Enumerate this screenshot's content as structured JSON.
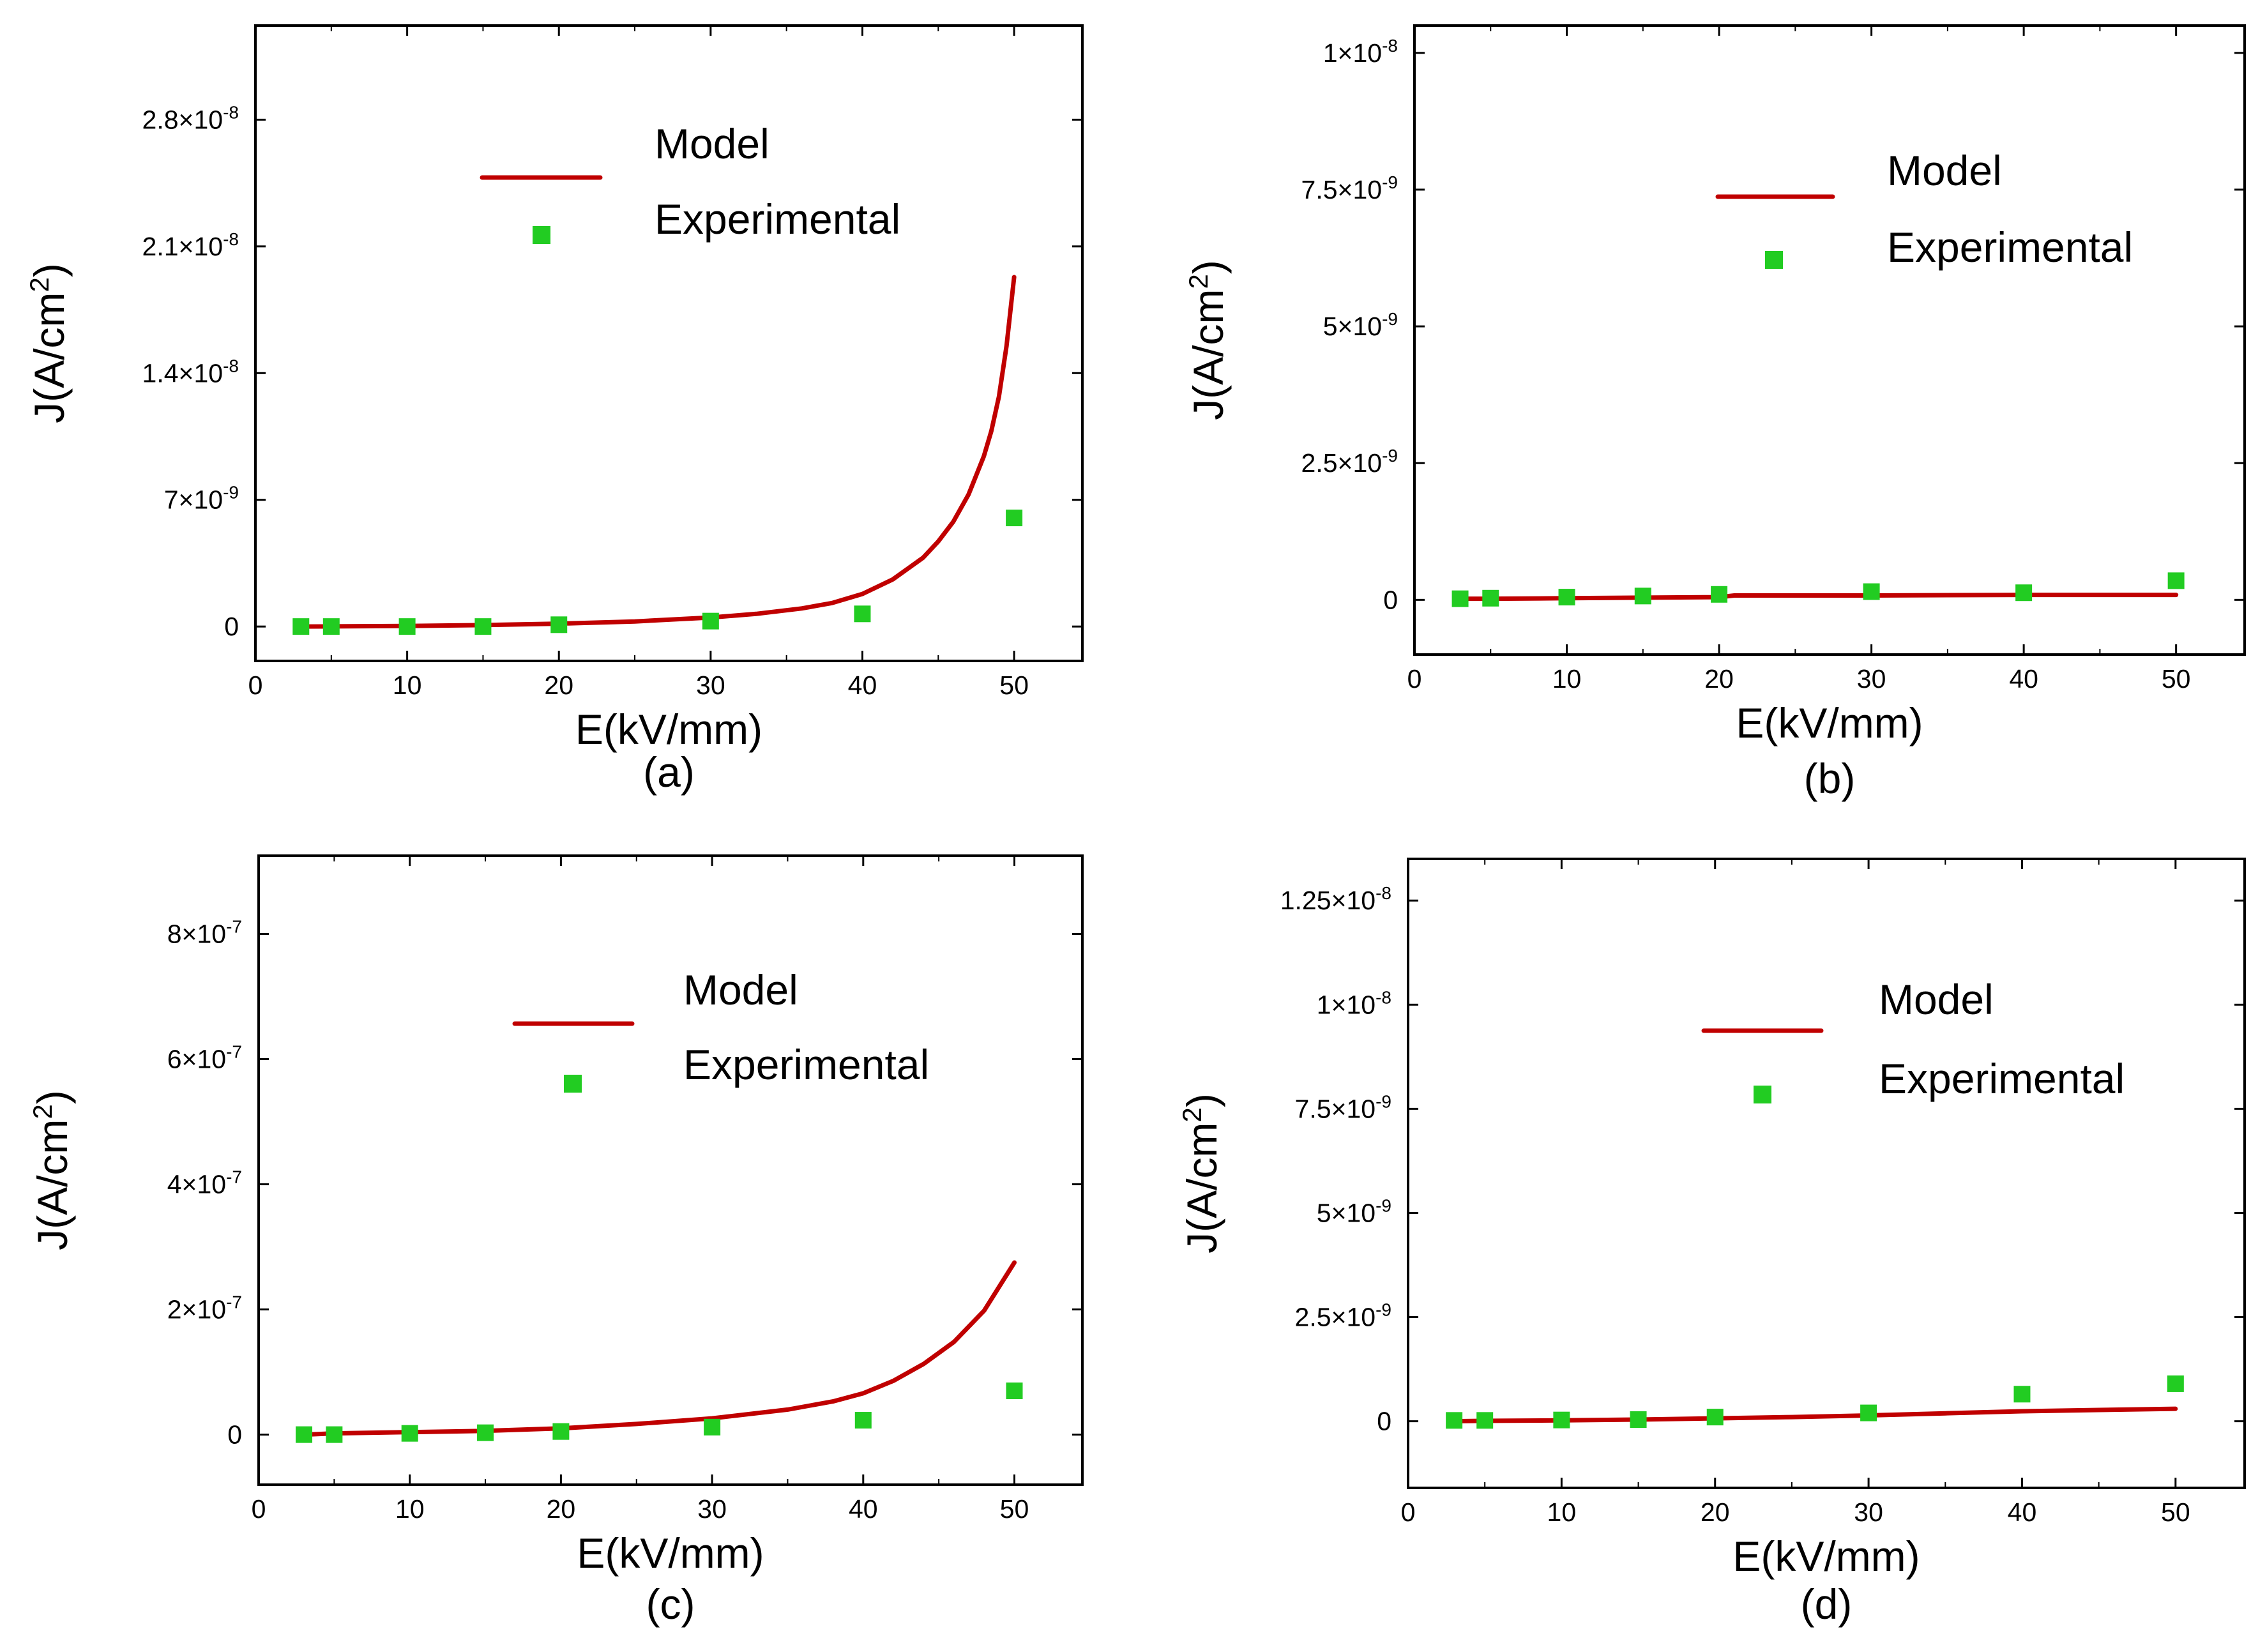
{
  "chart_data": [
    {
      "type": "line",
      "panel_label": "(a)",
      "xlabel": "E(kV/mm)",
      "ylabel": "J(A/cm²)",
      "ylabel_base": "J(A/cm",
      "ylabel_sup": "2",
      "ylabel_tail": ")",
      "xlim": [
        0,
        54.5
      ],
      "ylim": [
        -1.9e-09,
        3.32e-08
      ],
      "xticks": [
        0,
        10,
        20,
        30,
        40,
        50
      ],
      "xtick_labels": [
        "0",
        "10",
        "20",
        "30",
        "40",
        "50"
      ],
      "yticks": [
        {
          "value": 0,
          "mantissa": "0",
          "exponent": ""
        },
        {
          "value": 7e-09,
          "mantissa": "7×10",
          "exponent": "-9"
        },
        {
          "value": 1.4e-08,
          "mantissa": "1.4×10",
          "exponent": "-8"
        },
        {
          "value": 2.1e-08,
          "mantissa": "2.1×10",
          "exponent": "-8"
        },
        {
          "value": 2.8e-08,
          "mantissa": "2.8×10",
          "exponent": "-8"
        }
      ],
      "legend": {
        "position": "top-center",
        "model_label": "Model",
        "experimental_label": "Experimental"
      },
      "series": [
        {
          "name": "Model",
          "style": "line",
          "color": "#c00000",
          "x": [
            3,
            5,
            10,
            15,
            20,
            25,
            30,
            33,
            36,
            38,
            40,
            42,
            44,
            45,
            46,
            47,
            48,
            48.5,
            49,
            49.5,
            50
          ],
          "values": [
            0,
            1e-11,
            3e-11,
            8e-11,
            1.6e-10,
            2.8e-10,
            5e-10,
            7e-10,
            1e-09,
            1.3e-09,
            1.8e-09,
            2.6e-09,
            3.8e-09,
            4.7e-09,
            5.8e-09,
            7.3e-09,
            9.4e-09,
            1.08e-08,
            1.27e-08,
            1.55e-08,
            1.93e-08
          ]
        },
        {
          "name": "Experimental",
          "style": "marker",
          "color": "#22cc22",
          "x": [
            3,
            5,
            10,
            15,
            20,
            30,
            40,
            50
          ],
          "values": [
            0,
            0,
            0,
            0,
            1e-10,
            3e-10,
            7e-10,
            6e-09
          ]
        }
      ]
    },
    {
      "type": "line",
      "panel_label": "(b)",
      "xlabel": "E(kV/mm)",
      "ylabel": "J(A/cm²)",
      "ylabel_base": "J(A/cm",
      "ylabel_sup": "2",
      "ylabel_tail": ")",
      "xlim": [
        0,
        54.5
      ],
      "ylim": [
        -1e-09,
        1.05e-08
      ],
      "xticks": [
        0,
        10,
        20,
        30,
        40,
        50
      ],
      "xtick_labels": [
        "0",
        "10",
        "20",
        "30",
        "40",
        "50"
      ],
      "yticks": [
        {
          "value": 0,
          "mantissa": "0",
          "exponent": ""
        },
        {
          "value": 2.5e-09,
          "mantissa": "2.5×10",
          "exponent": "-9"
        },
        {
          "value": 5e-09,
          "mantissa": "5×10",
          "exponent": "-9"
        },
        {
          "value": 7.5e-09,
          "mantissa": "7.5×10",
          "exponent": "-9"
        },
        {
          "value": 1e-08,
          "mantissa": "1×10",
          "exponent": "-8"
        }
      ],
      "legend": {
        "position": "top-right",
        "model_label": "Model",
        "experimental_label": "Experimental"
      },
      "series": [
        {
          "name": "Model",
          "style": "line",
          "color": "#c00000",
          "x": [
            3,
            5,
            10,
            15,
            20,
            21,
            30,
            40,
            50
          ],
          "values": [
            2e-11,
            2e-11,
            3e-11,
            4e-11,
            5e-11,
            8e-11,
            8e-11,
            9e-11,
            9e-11
          ]
        },
        {
          "name": "Experimental",
          "style": "marker",
          "color": "#22cc22",
          "x": [
            3,
            5,
            10,
            15,
            20,
            30,
            40,
            50
          ],
          "values": [
            2e-11,
            3e-11,
            5e-11,
            7e-11,
            1e-10,
            1.5e-10,
            1.3e-10,
            3.5e-10
          ]
        }
      ]
    },
    {
      "type": "line",
      "panel_label": "(c)",
      "xlabel": "E(kV/mm)",
      "ylabel": "J(A/cm²)",
      "ylabel_base": "J(A/cm",
      "ylabel_sup": "2",
      "ylabel_tail": ")",
      "xlim": [
        0,
        54.5
      ],
      "ylim": [
        -8e-08,
        9.25e-07
      ],
      "xticks": [
        0,
        10,
        20,
        30,
        40,
        50
      ],
      "xtick_labels": [
        "0",
        "10",
        "20",
        "30",
        "40",
        "50"
      ],
      "yticks": [
        {
          "value": 0,
          "mantissa": "0",
          "exponent": ""
        },
        {
          "value": 2e-07,
          "mantissa": "2×10",
          "exponent": "-7"
        },
        {
          "value": 4e-07,
          "mantissa": "4×10",
          "exponent": "-7"
        },
        {
          "value": 6e-07,
          "mantissa": "6×10",
          "exponent": "-7"
        },
        {
          "value": 8e-07,
          "mantissa": "8×10",
          "exponent": "-7"
        }
      ],
      "legend": {
        "position": "center",
        "model_label": "Model",
        "experimental_label": "Experimental"
      },
      "series": [
        {
          "name": "Model",
          "style": "line",
          "color": "#c00000",
          "x": [
            3,
            5,
            10,
            15,
            20,
            25,
            30,
            35,
            38,
            40,
            42,
            44,
            46,
            48,
            50
          ],
          "values": [
            0,
            2e-09,
            4e-09,
            6e-09,
            1e-08,
            1.7e-08,
            2.6e-08,
            4e-08,
            5.3e-08,
            6.6e-08,
            8.6e-08,
            1.13e-07,
            1.48e-07,
            1.98e-07,
            2.75e-07
          ]
        },
        {
          "name": "Experimental",
          "style": "marker",
          "color": "#22cc22",
          "x": [
            3,
            5,
            10,
            15,
            20,
            30,
            40,
            50
          ],
          "values": [
            0,
            0,
            2e-09,
            3e-09,
            5e-09,
            1.2e-08,
            2.3e-08,
            7e-08
          ]
        }
      ]
    },
    {
      "type": "line",
      "panel_label": "(d)",
      "xlabel": "E(kV/mm)",
      "ylabel": "J(A/cm²)",
      "ylabel_base": "J(A/cm",
      "ylabel_sup": "2",
      "ylabel_tail": ")",
      "xlim": [
        0,
        54.5
      ],
      "ylim": [
        -1.6e-09,
        1.35e-08
      ],
      "xticks": [
        0,
        10,
        20,
        30,
        40,
        50
      ],
      "xtick_labels": [
        "0",
        "10",
        "20",
        "30",
        "40",
        "50"
      ],
      "yticks": [
        {
          "value": 0,
          "mantissa": "0",
          "exponent": ""
        },
        {
          "value": 2.5e-09,
          "mantissa": "2.5×10",
          "exponent": "-9"
        },
        {
          "value": 5e-09,
          "mantissa": "5×10",
          "exponent": "-9"
        },
        {
          "value": 7.5e-09,
          "mantissa": "7.5×10",
          "exponent": "-9"
        },
        {
          "value": 1e-08,
          "mantissa": "1×10",
          "exponent": "-8"
        },
        {
          "value": 1.25e-08,
          "mantissa": "1.25×10",
          "exponent": "-8"
        }
      ],
      "legend": {
        "position": "top-right",
        "model_label": "Model",
        "experimental_label": "Experimental"
      },
      "series": [
        {
          "name": "Model",
          "style": "line",
          "color": "#c00000",
          "x": [
            3,
            5,
            10,
            15,
            20,
            25,
            30,
            35,
            40,
            45,
            50
          ],
          "values": [
            0,
            1e-11,
            2e-11,
            4e-11,
            7e-11,
            1e-10,
            1.4e-10,
            1.9e-10,
            2.4e-10,
            2.7e-10,
            3e-10
          ]
        },
        {
          "name": "Experimental",
          "style": "marker",
          "color": "#22cc22",
          "x": [
            3,
            5,
            10,
            15,
            20,
            30,
            40,
            50
          ],
          "values": [
            2e-11,
            2e-11,
            3e-11,
            4e-11,
            1e-10,
            2e-10,
            6.5e-10,
            9e-10
          ]
        }
      ]
    }
  ]
}
